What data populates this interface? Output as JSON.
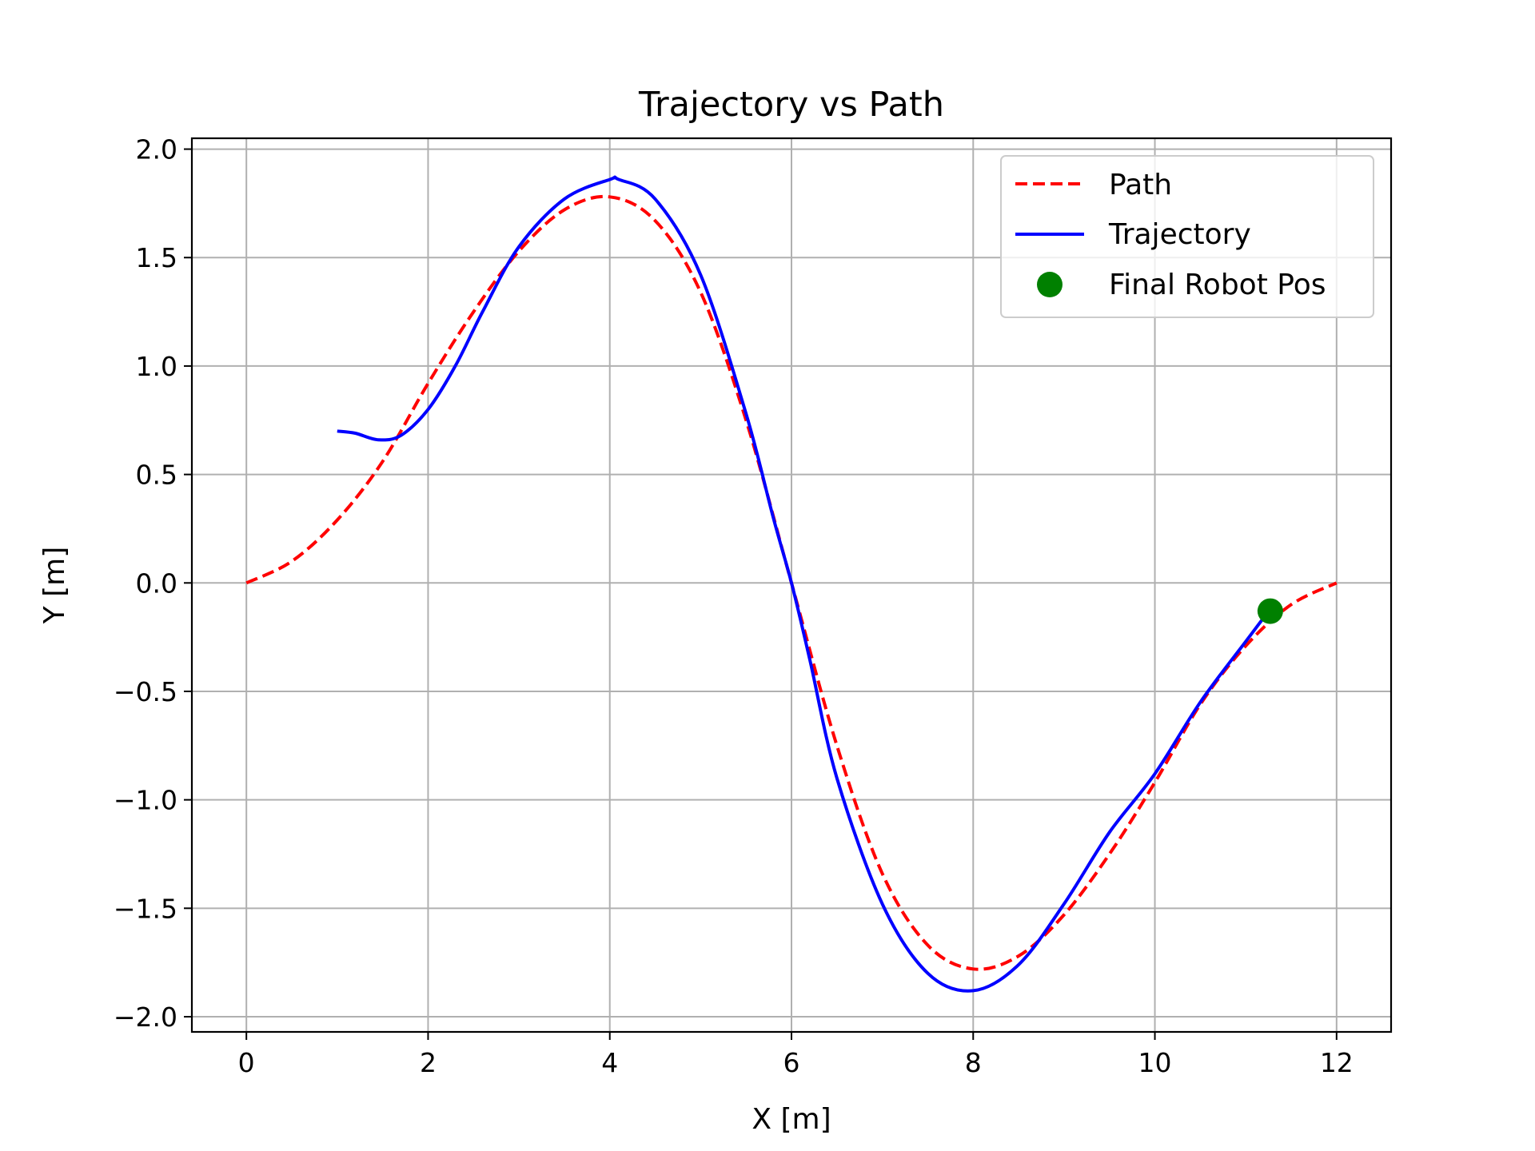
{
  "chart_data": {
    "type": "line",
    "title": "Trajectory vs Path",
    "xlabel": "X [m]",
    "ylabel": "Y [m]",
    "xlim": [
      -0.6,
      12.6
    ],
    "ylim": [
      -2.07,
      2.05
    ],
    "xticks": [
      0,
      2,
      4,
      6,
      8,
      10,
      12
    ],
    "xtick_labels": [
      "0",
      "2",
      "4",
      "6",
      "8",
      "10",
      "12"
    ],
    "yticks": [
      2.0,
      1.5,
      1.0,
      0.5,
      0.0,
      -0.5,
      -1.0,
      -1.5,
      -2.0
    ],
    "ytick_labels": [
      "2.0",
      "1.5",
      "1.0",
      "0.5",
      "0.0",
      "−0.5",
      "−1.0",
      "−1.5",
      "−2.0"
    ],
    "grid": true,
    "legend_position": "top-right",
    "series": [
      {
        "name": "Path",
        "style": "dashed",
        "color": "#ff0000",
        "x": [
          0,
          0.5,
          1.0,
          1.5,
          2.0,
          2.5,
          3.0,
          3.5,
          4.0,
          4.5,
          5.0,
          5.5,
          6.0,
          6.5,
          7.0,
          7.5,
          8.0,
          8.5,
          9.0,
          9.5,
          10.0,
          10.5,
          11.0,
          11.5,
          12.0
        ],
        "y": [
          0.0,
          0.1,
          0.29,
          0.56,
          0.92,
          1.25,
          1.53,
          1.72,
          1.78,
          1.67,
          1.34,
          0.75,
          0.0,
          -0.75,
          -1.34,
          -1.67,
          -1.78,
          -1.72,
          -1.53,
          -1.25,
          -0.92,
          -0.56,
          -0.29,
          -0.1,
          0.0
        ]
      },
      {
        "name": "Trajectory",
        "style": "solid",
        "color": "#0000ff",
        "x": [
          1.0,
          1.2,
          1.45,
          1.7,
          2.0,
          2.3,
          2.6,
          3.0,
          3.5,
          4.0,
          4.1,
          4.5,
          5.0,
          5.5,
          5.8,
          6.0,
          6.2,
          6.5,
          7.0,
          7.5,
          8.0,
          8.5,
          9.0,
          9.5,
          10.0,
          10.5,
          11.0,
          11.27
        ],
        "y": [
          0.7,
          0.69,
          0.66,
          0.68,
          0.8,
          1.0,
          1.25,
          1.55,
          1.77,
          1.86,
          1.86,
          1.77,
          1.42,
          0.78,
          0.3,
          0.0,
          -0.35,
          -0.9,
          -1.48,
          -1.8,
          -1.88,
          -1.76,
          -1.48,
          -1.15,
          -0.88,
          -0.55,
          -0.27,
          -0.12
        ]
      }
    ],
    "markers": [
      {
        "name": "Final Robot Pos",
        "color": "#008000",
        "x": 11.27,
        "y": -0.13
      }
    ]
  }
}
